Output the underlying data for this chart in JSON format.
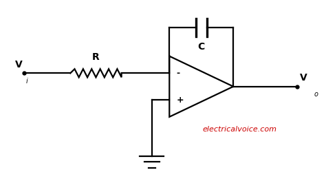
{
  "background_color": "#ffffff",
  "line_color": "#000000",
  "text_color": "#000000",
  "watermark_color": "#cc0000",
  "watermark_text": "electricalvoice.com",
  "label_vi": "V",
  "label_vi_sub": "i",
  "label_vo": "V",
  "label_vo_sub": "o",
  "label_r": "R",
  "label_c": "C",
  "label_minus": "-",
  "label_plus": "+",
  "figsize": [
    4.74,
    2.63
  ],
  "dpi": 100,
  "xlim": [
    0,
    10
  ],
  "ylim": [
    0,
    5.55
  ]
}
